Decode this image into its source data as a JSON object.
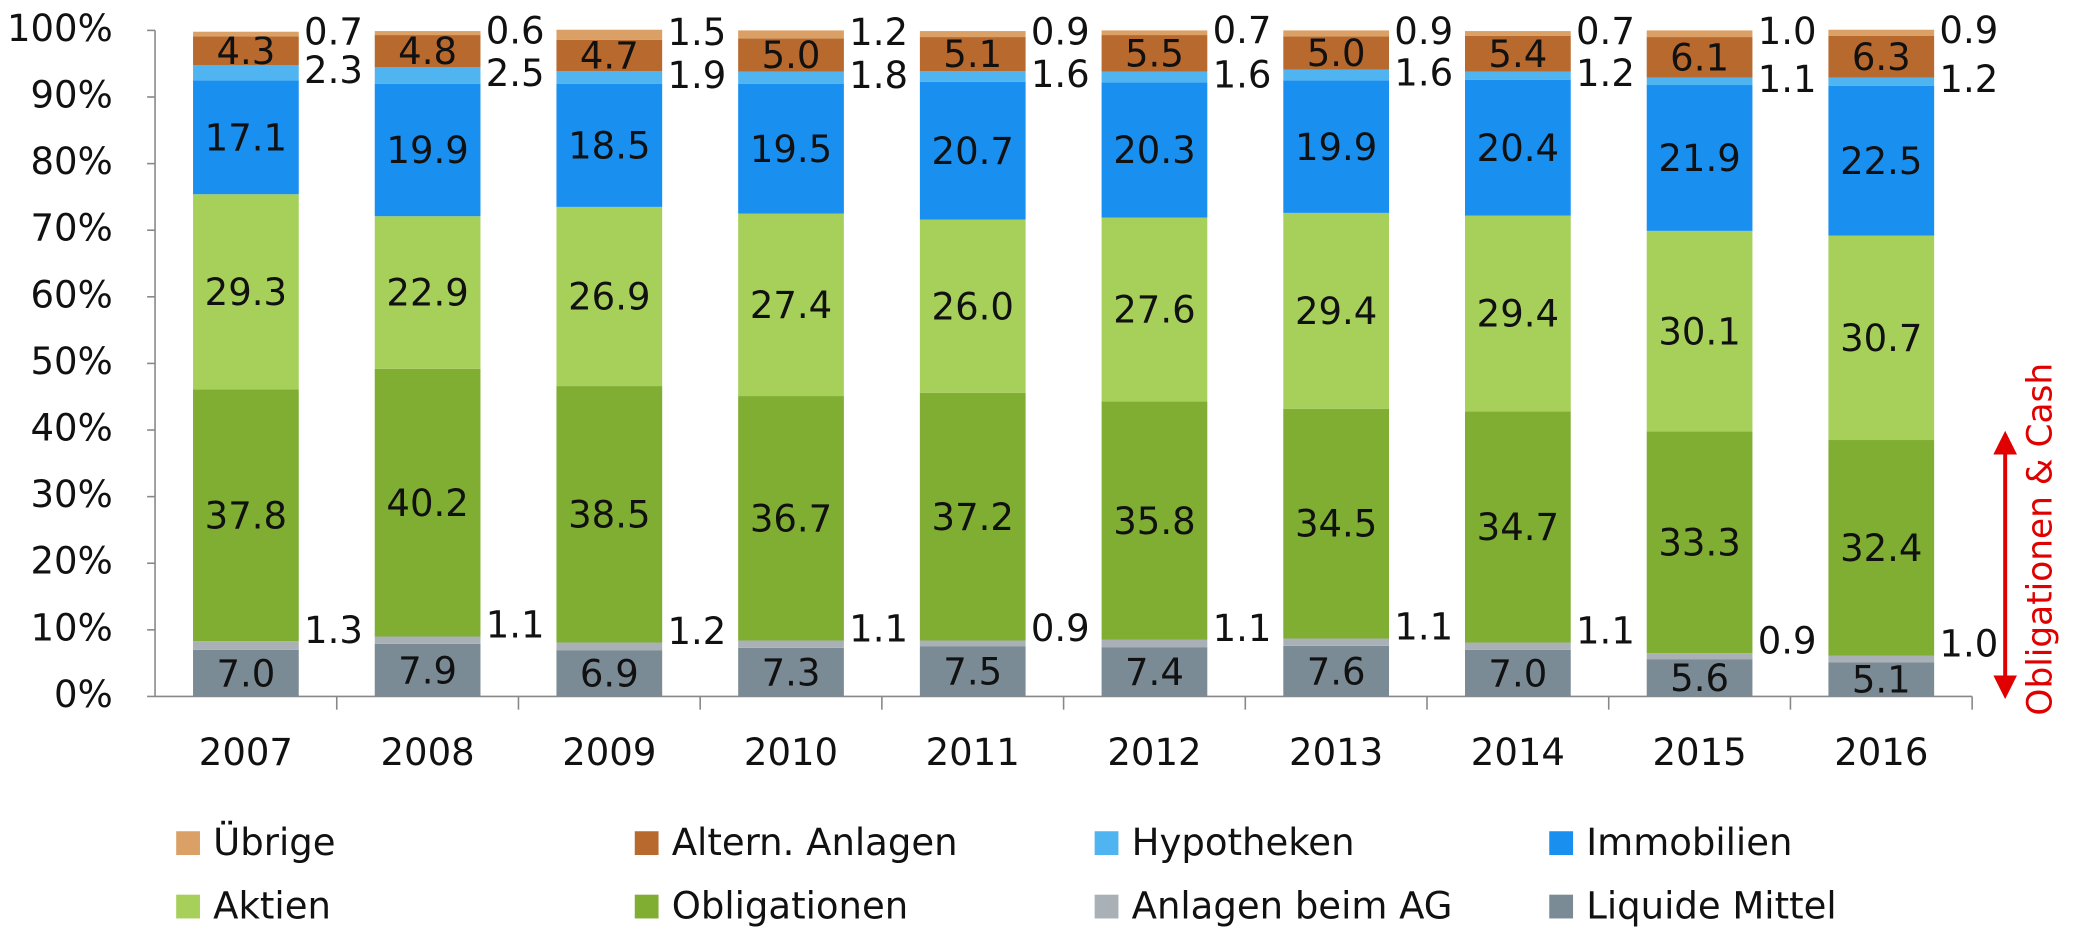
{
  "chart_data": {
    "type": "stacked_bar",
    "categories": [
      "2007",
      "2008",
      "2009",
      "2010",
      "2011",
      "2012",
      "2013",
      "2014",
      "2015",
      "2016"
    ],
    "ylim": [
      0,
      100
    ],
    "yticks": [
      {
        "value": 0,
        "label": "0%"
      },
      {
        "value": 10,
        "label": "10%"
      },
      {
        "value": 20,
        "label": "20%"
      },
      {
        "value": 30,
        "label": "30%"
      },
      {
        "value": 40,
        "label": "40%"
      },
      {
        "value": 50,
        "label": "50%"
      },
      {
        "value": 60,
        "label": "60%"
      },
      {
        "value": 70,
        "label": "70%"
      },
      {
        "value": 80,
        "label": "80%"
      },
      {
        "value": 90,
        "label": "90%"
      },
      {
        "value": 100,
        "label": "100%"
      }
    ],
    "annotation": "Obligationen & Cash",
    "series": [
      {
        "name": "Liquide Mittel",
        "color": "#7b8b95",
        "values": [
          7.0,
          7.9,
          6.9,
          7.3,
          7.5,
          7.4,
          7.6,
          7.0,
          5.6,
          5.1
        ],
        "value_labels": [
          "7.0",
          "7.9",
          "6.9",
          "7.3",
          "7.5",
          "7.4",
          "7.6",
          "7.0",
          "5.6",
          "5.1"
        ]
      },
      {
        "name": "Anlagen beim AG",
        "color": "#a9b1b6",
        "values": [
          1.3,
          1.1,
          1.2,
          1.1,
          0.9,
          1.1,
          1.1,
          1.1,
          0.9,
          1.0
        ],
        "value_labels": [
          "1.3",
          "1.1",
          "1.2",
          "1.1",
          "0.9",
          "1.1",
          "1.1",
          "1.1",
          "0.9",
          "1.0"
        ]
      },
      {
        "name": "Obligationen",
        "color": "#7fae33",
        "values": [
          37.8,
          40.2,
          38.5,
          36.7,
          37.2,
          35.8,
          34.5,
          34.7,
          33.3,
          32.4
        ],
        "value_labels": [
          "37.8",
          "40.2",
          "38.5",
          "36.7",
          "37.2",
          "35.8",
          "34.5",
          "34.7",
          "33.3",
          "32.4"
        ]
      },
      {
        "name": "Aktien",
        "color": "#a7d05b",
        "values": [
          29.3,
          22.9,
          26.9,
          27.4,
          26.0,
          27.6,
          29.4,
          29.4,
          30.1,
          30.7
        ],
        "value_labels": [
          "29.3",
          "22.9",
          "26.9",
          "27.4",
          "26.0",
          "27.6",
          "29.4",
          "29.4",
          "30.1",
          "30.7"
        ]
      },
      {
        "name": "Immobilien",
        "color": "#1990f0",
        "values": [
          17.1,
          19.9,
          18.5,
          19.5,
          20.7,
          20.3,
          19.9,
          20.4,
          21.9,
          22.5
        ],
        "value_labels": [
          "17.1",
          "19.9",
          "18.5",
          "19.5",
          "20.7",
          "20.3",
          "19.9",
          "20.4",
          "21.9",
          "22.5"
        ]
      },
      {
        "name": "Hypotheken",
        "color": "#50b4f0",
        "values": [
          2.3,
          2.5,
          1.9,
          1.8,
          1.6,
          1.6,
          1.6,
          1.2,
          1.1,
          1.2
        ],
        "value_labels": [
          "2.3",
          "2.5",
          "1.9",
          "1.8",
          "1.6",
          "1.6",
          "1.6",
          "1.2",
          "1.1",
          "1.2"
        ]
      },
      {
        "name": "Altern. Anlagen",
        "color": "#b8692e",
        "values": [
          4.3,
          4.8,
          4.7,
          5.0,
          5.1,
          5.5,
          5.0,
          5.4,
          6.1,
          6.3
        ],
        "value_labels": [
          "4.3",
          "4.8",
          "4.7",
          "5.0",
          "5.1",
          "5.5",
          "5.0",
          "5.4",
          "6.1",
          "6.3"
        ]
      },
      {
        "name": "Übrige",
        "color": "#dba066",
        "values": [
          0.7,
          0.6,
          1.5,
          1.2,
          0.9,
          0.7,
          0.9,
          0.7,
          1.0,
          0.9
        ],
        "value_labels": [
          "0.7",
          "0.6",
          "1.5",
          "1.2",
          "0.9",
          "0.7",
          "0.9",
          "0.7",
          "1.0",
          "0.9"
        ]
      }
    ]
  }
}
